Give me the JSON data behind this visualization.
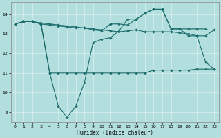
{
  "xlabel": "Humidex (Indice chaleur)",
  "bg_color": "#b2dede",
  "grid_color": "#d4eded",
  "line_color": "#1a6b6b",
  "ylim": [
    8.5,
    14.6
  ],
  "yticks": [
    9,
    10,
    11,
    12,
    13,
    14
  ],
  "xlim": [
    -0.5,
    23.5
  ],
  "series": {
    "line1": [
      13.5,
      13.62,
      13.62,
      13.55,
      13.5,
      13.45,
      13.4,
      13.35,
      13.3,
      13.25,
      13.2,
      13.15,
      13.1,
      13.15,
      13.2,
      13.1,
      13.1,
      13.1,
      13.1,
      13.05,
      13.0,
      12.9,
      12.9,
      13.2
    ],
    "line2": [
      13.5,
      13.62,
      13.62,
      13.5,
      11.0,
      11.0,
      11.0,
      11.0,
      11.0,
      11.0,
      11.0,
      11.0,
      11.0,
      11.0,
      11.0,
      11.0,
      11.15,
      11.15,
      11.15,
      11.15,
      11.15,
      11.2,
      11.2,
      11.2
    ],
    "line3": [
      13.5,
      13.62,
      13.62,
      13.5,
      11.0,
      9.3,
      8.75,
      9.3,
      10.5,
      12.55,
      12.72,
      12.8,
      13.15,
      13.75,
      13.75,
      14.05,
      14.25,
      14.25,
      13.25,
      13.25,
      12.9,
      12.9,
      11.55,
      11.2
    ],
    "line4": [
      13.5,
      13.62,
      13.62,
      13.5,
      13.45,
      13.4,
      13.35,
      13.3,
      13.3,
      13.2,
      13.15,
      13.5,
      13.5,
      13.45,
      13.75,
      14.05,
      14.25,
      14.25,
      13.25,
      13.25,
      13.25,
      13.25,
      13.25,
      null
    ]
  }
}
